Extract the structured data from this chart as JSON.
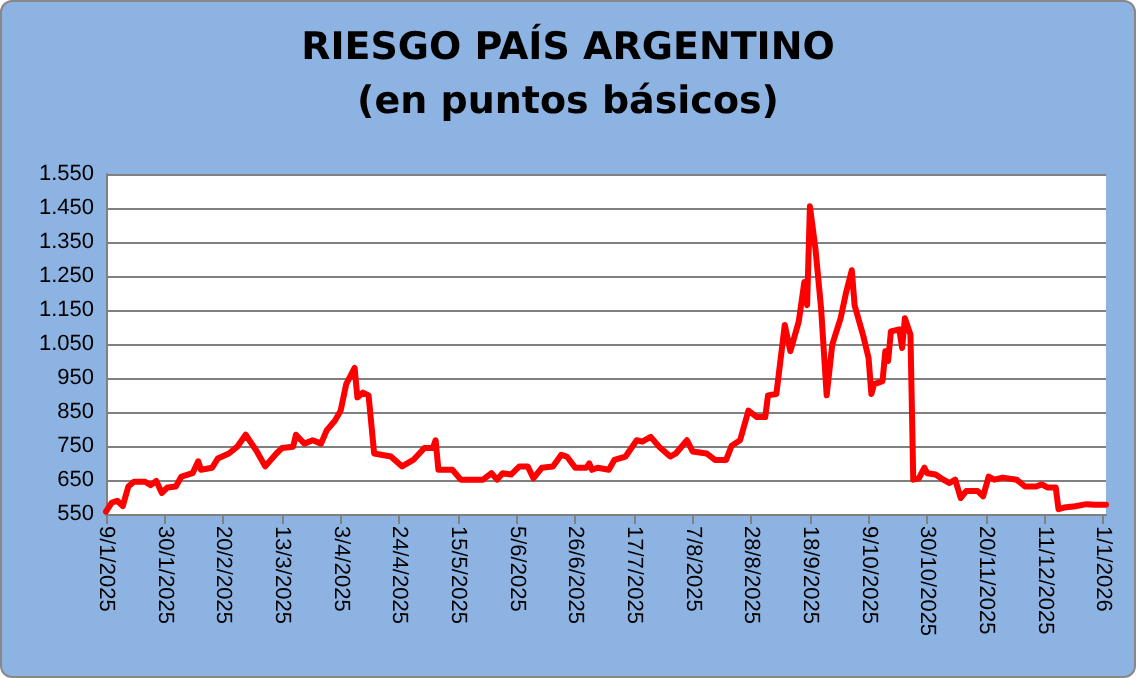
{
  "chart_data": {
    "type": "line",
    "title": "RIESGO PAÍS ARGENTINO",
    "subtitle": "(en puntos básicos)",
    "x": [
      "2025-01-09",
      "2025-01-11",
      "2025-01-13",
      "2025-01-15",
      "2025-01-17",
      "2025-01-19",
      "2025-01-23",
      "2025-01-25",
      "2025-01-27",
      "2025-01-29",
      "2025-01-31",
      "2025-02-03",
      "2025-02-05",
      "2025-02-09",
      "2025-02-11",
      "2025-02-12",
      "2025-02-16",
      "2025-02-18",
      "2025-02-22",
      "2025-02-25",
      "2025-02-28",
      "2025-03-04",
      "2025-03-07",
      "2025-03-11",
      "2025-03-13",
      "2025-03-17",
      "2025-03-18",
      "2025-03-21",
      "2025-03-24",
      "2025-03-27",
      "2025-03-29",
      "2025-04-01",
      "2025-04-03",
      "2025-04-05",
      "2025-04-08",
      "2025-04-09",
      "2025-04-11",
      "2025-04-13",
      "2025-04-15",
      "2025-04-21",
      "2025-04-25",
      "2025-04-29",
      "2025-05-03",
      "2025-05-06",
      "2025-05-07",
      "2025-05-08",
      "2025-05-13",
      "2025-05-16",
      "2025-05-24",
      "2025-05-27",
      "2025-05-29",
      "2025-05-31",
      "2025-06-03",
      "2025-06-06",
      "2025-06-09",
      "2025-06-11",
      "2025-06-14",
      "2025-06-18",
      "2025-06-21",
      "2025-06-23",
      "2025-06-26",
      "2025-06-30",
      "2025-07-01",
      "2025-07-02",
      "2025-07-04",
      "2025-07-08",
      "2025-07-10",
      "2025-07-14",
      "2025-07-18",
      "2025-07-20",
      "2025-07-23",
      "2025-07-26",
      "2025-07-30",
      "2025-08-01",
      "2025-08-05",
      "2025-08-07",
      "2025-08-12",
      "2025-08-15",
      "2025-08-19",
      "2025-08-21",
      "2025-08-24",
      "2025-08-27",
      "2025-08-30",
      "2025-09-02",
      "2025-09-03",
      "2025-09-06",
      "2025-09-09",
      "2025-09-11",
      "2025-09-14",
      "2025-09-16",
      "2025-09-17",
      "2025-09-18",
      "2025-09-20",
      "2025-09-22",
      "2025-09-24",
      "2025-09-26",
      "2025-09-29",
      "2025-10-01",
      "2025-10-03",
      "2025-10-04",
      "2025-10-07",
      "2025-10-09",
      "2025-10-10",
      "2025-10-11",
      "2025-10-14",
      "2025-10-15",
      "2025-10-16",
      "2025-10-17",
      "2025-10-20",
      "2025-10-21",
      "2025-10-22",
      "2025-10-24",
      "2025-10-25",
      "2025-10-27",
      "2025-10-29",
      "2025-10-30",
      "2025-11-02",
      "2025-11-04",
      "2025-11-07",
      "2025-11-09",
      "2025-11-11",
      "2025-11-13",
      "2025-11-17",
      "2025-11-19",
      "2025-11-21",
      "2025-11-23",
      "2025-11-26",
      "2025-12-01",
      "2025-12-04",
      "2025-12-08",
      "2025-12-10",
      "2025-12-12",
      "2025-12-15",
      "2025-12-16",
      "2025-12-18",
      "2025-12-22",
      "2025-12-26",
      "2025-12-29",
      "2026-01-02"
    ],
    "series": [
      {
        "color": "#ff0000",
        "values": [
          557,
          583,
          589,
          573,
          631,
          645,
          645,
          635,
          647,
          612,
          628,
          631,
          660,
          670,
          705,
          680,
          686,
          713,
          728,
          748,
          783,
          734,
          690,
          728,
          744,
          748,
          783,
          757,
          767,
          757,
          796,
          825,
          854,
          932,
          980,
          893,
          907,
          899,
          728,
          719,
          690,
          709,
          744,
          744,
          767,
          680,
          680,
          651,
          651,
          670,
          651,
          670,
          666,
          690,
          690,
          655,
          686,
          690,
          724,
          719,
          686,
          686,
          699,
          680,
          686,
          680,
          709,
          719,
          767,
          763,
          777,
          748,
          719,
          728,
          767,
          734,
          728,
          709,
          709,
          751,
          767,
          854,
          835,
          835,
          899,
          903,
          1106,
          1029,
          1116,
          1232,
          1164,
          1455,
          1329,
          1155,
          899,
          1048,
          1126,
          1203,
          1267,
          1164,
          1077,
          1009,
          903,
          932,
          941,
          1029,
          1000,
          1087,
          1093,
          1038,
          1126,
          1077,
          651,
          655,
          686,
          670,
          666,
          655,
          641,
          651,
          597,
          618,
          618,
          602,
          660,
          651,
          657,
          651,
          631,
          631,
          637,
          628,
          628,
          564,
          569,
          573,
          579,
          577,
          577
        ]
      }
    ],
    "xlim": [
      "2025-01-09",
      "2026-01-02"
    ],
    "xticks": [
      {
        "value": "2025-01-09",
        "label": "9/1/2025"
      },
      {
        "value": "2025-01-30",
        "label": "30/1/2025"
      },
      {
        "value": "2025-02-20",
        "label": "20/2/2025"
      },
      {
        "value": "2025-03-13",
        "label": "13/3/2025"
      },
      {
        "value": "2025-04-03",
        "label": "3/4/2025"
      },
      {
        "value": "2025-04-24",
        "label": "24/4/2025"
      },
      {
        "value": "2025-05-15",
        "label": "15/5/2025"
      },
      {
        "value": "2025-06-05",
        "label": "5/6/2025"
      },
      {
        "value": "2025-06-26",
        "label": "26/6/2025"
      },
      {
        "value": "2025-07-17",
        "label": "17/7/2025"
      },
      {
        "value": "2025-08-07",
        "label": "7/8/2025"
      },
      {
        "value": "2025-08-28",
        "label": "28/8/2025"
      },
      {
        "value": "2025-09-18",
        "label": "18/9/2025"
      },
      {
        "value": "2025-10-09",
        "label": "9/10/2025"
      },
      {
        "value": "2025-10-30",
        "label": "30/10/2025"
      },
      {
        "value": "2025-11-20",
        "label": "20/11/2025"
      },
      {
        "value": "2025-12-11",
        "label": "11/12/2025"
      },
      {
        "value": "2026-01-01",
        "label": "1/1/2026"
      }
    ],
    "ylim": [
      550,
      1550
    ],
    "yticks": [
      550,
      650,
      750,
      850,
      950,
      {
        "value": 1050,
        "label": "1.050"
      },
      {
        "value": 1150,
        "label": "1.150"
      },
      {
        "value": 1250,
        "label": "1.250"
      },
      {
        "value": 1350,
        "label": "1.350"
      },
      {
        "value": 1450,
        "label": "1.450"
      },
      {
        "value": 1550,
        "label": "1.550"
      }
    ],
    "grid": "y",
    "marker": "none",
    "line_style": "solid"
  }
}
